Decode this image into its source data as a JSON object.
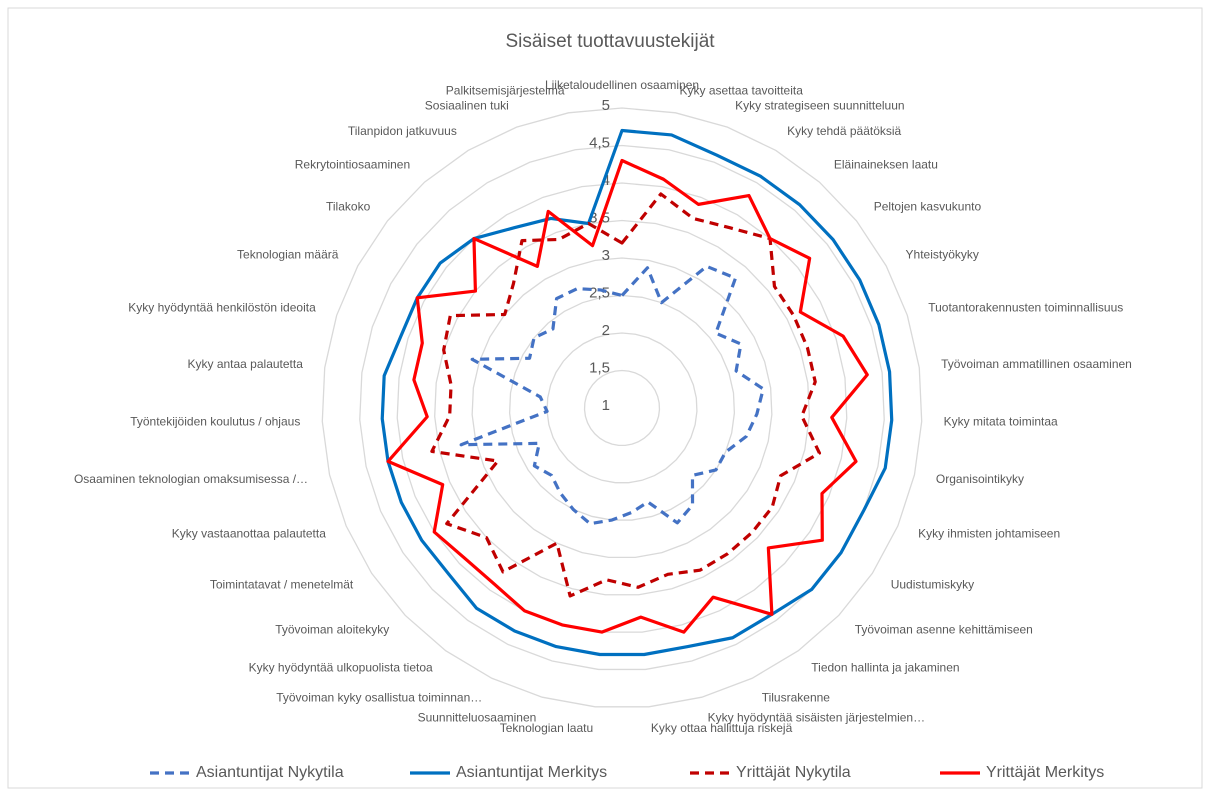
{
  "chart_data": {
    "type": "radar",
    "title": "Sisäiset tuottavuustekijät",
    "categories": [
      "Liiketaloudellinen osaaminen",
      "Kyky asettaa tavoitteita",
      "Kyky strategiseen suunnitteluun",
      "Kyky tehdä päätöksiä",
      "Eläinaineksen laatu",
      "Peltojen kasvukunto",
      "Yhteistyökyky",
      "Tuotantorakennusten toiminnallisuus",
      "Työvoiman ammatillinen osaaminen",
      "Kyky mitata toimintaa",
      "Organisointikyky",
      "Kyky ihmisten johtamiseen",
      "Uudistumiskyky",
      "Työvoiman asenne kehittämiseen",
      "Tiedon hallinta ja jakaminen",
      "Tilusrakenne",
      "Kyky hyödyntää sisäisten järjestelmien…",
      "Kyky ottaa hallittuja riskejä",
      "Teknologian laatu",
      "Suunnitteluosaaminen",
      "Työvoiman kyky osallistua toiminnan…",
      "Kyky hyödyntää ulkopuolista tietoa",
      "Työvoiman aloitekyky",
      "Toimintatavat / menetelmät",
      "Kyky vastaanottaa palautetta",
      "Osaaminen teknologian omaksumisessa /…",
      "Työntekijöiden koulutus / ohjaus",
      "Kyky antaa palautetta",
      "Kyky hyödyntää henkilöstön ideoita",
      "Teknologian määrä",
      "Tilakoko",
      "Rekrytointiosaaminen",
      "Tilanpidon jatkuvuus",
      "Sosiaalinen tuki",
      "Palkitsemisjärjestelmä"
    ],
    "series": [
      {
        "name": "Asiantuntijat Nykytila",
        "color": "#4472c4",
        "line_style": "dashed",
        "values": [
          2.5,
          2.9,
          2.5,
          3.2,
          3.3,
          2.6,
          2.8,
          2.6,
          2.9,
          2.8,
          2.7,
          2.5,
          2.5,
          2.3,
          2.6,
          2.7,
          2.3,
          2.4,
          2.5,
          2.6,
          2.5,
          2.4,
          2.3,
          2.4,
          2.2,
          3.2,
          2.0,
          2.1,
          3.1,
          2.4,
          2.5,
          2.4,
          2.7,
          2.7,
          2.6
        ]
      },
      {
        "name": "Asiantuntijat Merkitys",
        "color": "#0070c0",
        "line_style": "solid",
        "values": [
          4.7,
          4.7,
          4.6,
          4.6,
          4.6,
          4.6,
          4.6,
          4.6,
          4.6,
          4.6,
          4.6,
          4.5,
          4.5,
          4.5,
          4.4,
          4.4,
          4.3,
          4.3,
          4.3,
          4.3,
          4.3,
          4.3,
          4.2,
          4.2,
          4.2,
          4.2,
          4.2,
          4.2,
          4.1,
          4.1,
          4.1,
          4.0,
          3.8,
          3.7,
          3.5
        ]
      },
      {
        "name": "Yrittäjät Nykytila",
        "color": "#c00000",
        "line_style": "dashed",
        "values": [
          3.2,
          3.9,
          3.7,
          3.8,
          4.0,
          3.6,
          3.6,
          3.6,
          3.6,
          3.4,
          3.7,
          3.3,
          3.4,
          3.4,
          3.4,
          3.4,
          3.3,
          3.4,
          3.3,
          3.6,
          3.0,
          3.7,
          3.5,
          3.8,
          2.8,
          3.6,
          3.3,
          3.3,
          3.5,
          3.6,
          3.0,
          3.2,
          3.6,
          3.4,
          3.5
        ]
      },
      {
        "name": "Yrittäjät Merkitys",
        "color": "#ff0000",
        "line_style": "solid",
        "values": [
          4.3,
          4.1,
          3.9,
          4.3,
          4.0,
          4.2,
          3.7,
          4.1,
          4.3,
          3.8,
          4.2,
          3.9,
          4.2,
          3.7,
          4.4,
          3.8,
          4.1,
          3.8,
          4.0,
          4.0,
          4.0,
          3.9,
          3.9,
          4.0,
          3.6,
          4.2,
          3.6,
          3.8,
          3.8,
          4.1,
          3.5,
          4.0,
          3.2,
          3.8,
          3.2
        ]
      }
    ],
    "ylim": [
      1,
      5
    ],
    "yticks": [
      1,
      {
        "value": 1.5,
        "label": "1,5"
      },
      2,
      {
        "value": 2.5,
        "label": "2,5"
      },
      3,
      {
        "value": 3.5,
        "label": "3,5"
      },
      4,
      {
        "value": 4.5,
        "label": "4,5"
      },
      5
    ],
    "grid": true,
    "legend": "bottom"
  }
}
